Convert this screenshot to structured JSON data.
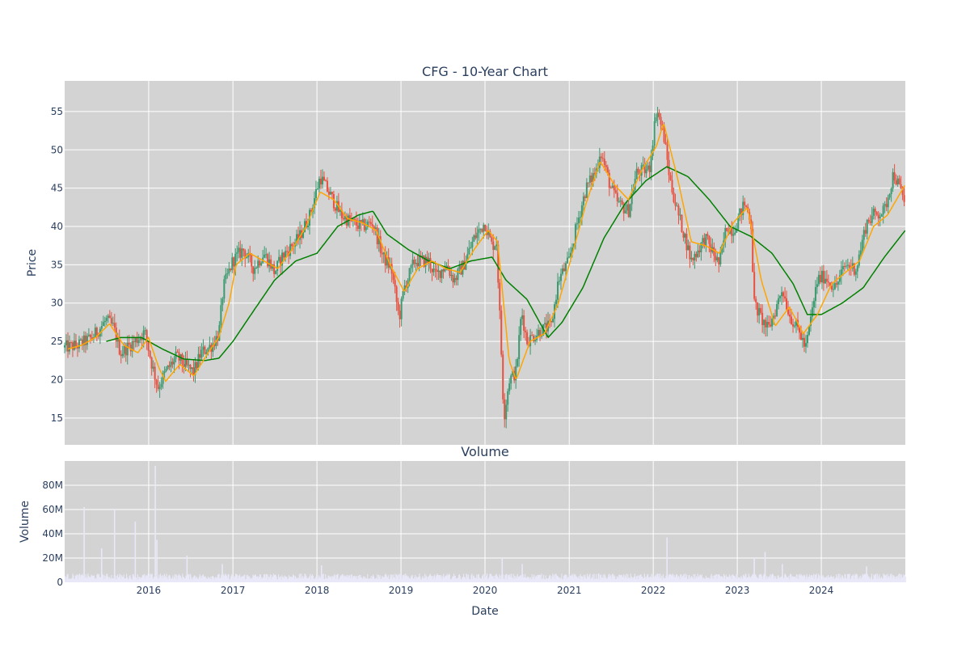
{
  "chart_data": [
    {
      "type": "candlestick",
      "title": "CFG - 10-Year Chart",
      "xlabel": "",
      "ylabel": "Price",
      "xlim": [
        "2015-01-01",
        "2024-12-31"
      ],
      "ylim": [
        11.5,
        59.0
      ],
      "y_ticks": [
        15,
        20,
        25,
        30,
        35,
        40,
        45,
        50,
        55
      ],
      "grid": true,
      "plot_bgcolor": "#d3d3d3",
      "increasing_color": "#3d9970",
      "decreasing_color": "#e8503f",
      "price_anchors": [
        [
          "2015-01-01",
          24.2
        ],
        [
          "2015-03-01",
          24.5
        ],
        [
          "2015-05-01",
          25.5
        ],
        [
          "2015-07-01",
          27.8
        ],
        [
          "2015-08-01",
          26.8
        ],
        [
          "2015-09-01",
          23.5
        ],
        [
          "2015-11-01",
          25.0
        ],
        [
          "2015-12-15",
          26.2
        ],
        [
          "2016-01-15",
          22.0
        ],
        [
          "2016-02-10",
          19.0
        ],
        [
          "2016-03-15",
          21.0
        ],
        [
          "2016-05-01",
          23.0
        ],
        [
          "2016-06-20",
          21.5
        ],
        [
          "2016-07-15",
          21.0
        ],
        [
          "2016-08-15",
          23.5
        ],
        [
          "2016-10-01",
          24.5
        ],
        [
          "2016-11-01",
          26.0
        ],
        [
          "2016-11-20",
          32.0
        ],
        [
          "2016-12-31",
          35.5
        ],
        [
          "2017-02-15",
          37.0
        ],
        [
          "2017-04-01",
          34.5
        ],
        [
          "2017-05-15",
          36.5
        ],
        [
          "2017-06-15",
          35.0
        ],
        [
          "2017-07-01",
          34.0
        ],
        [
          "2017-08-01",
          36.0
        ],
        [
          "2017-09-15",
          37.5
        ],
        [
          "2017-10-15",
          38.5
        ],
        [
          "2017-12-01",
          41.5
        ],
        [
          "2018-01-15",
          46.5
        ],
        [
          "2018-03-01",
          44.0
        ],
        [
          "2018-04-15",
          41.5
        ],
        [
          "2018-06-01",
          40.5
        ],
        [
          "2018-07-15",
          40.0
        ],
        [
          "2018-09-01",
          40.5
        ],
        [
          "2018-10-15",
          36.0
        ],
        [
          "2018-11-20",
          34.5
        ],
        [
          "2018-12-24",
          28.0
        ],
        [
          "2019-01-15",
          32.0
        ],
        [
          "2019-03-01",
          35.5
        ],
        [
          "2019-05-01",
          35.5
        ],
        [
          "2019-06-01",
          33.5
        ],
        [
          "2019-07-15",
          35.0
        ],
        [
          "2019-08-20",
          33.0
        ],
        [
          "2019-10-01",
          35.0
        ],
        [
          "2019-11-15",
          38.5
        ],
        [
          "2019-12-31",
          40.5
        ],
        [
          "2020-01-31",
          37.5
        ],
        [
          "2020-02-20",
          38.0
        ],
        [
          "2020-03-10",
          25.0
        ],
        [
          "2020-03-23",
          15.0
        ],
        [
          "2020-04-15",
          20.0
        ],
        [
          "2020-05-15",
          21.0
        ],
        [
          "2020-06-08",
          29.0
        ],
        [
          "2020-07-01",
          25.0
        ],
        [
          "2020-09-01",
          26.5
        ],
        [
          "2020-10-15",
          27.0
        ],
        [
          "2020-11-15",
          33.0
        ],
        [
          "2020-12-31",
          35.5
        ],
        [
          "2021-02-01",
          40.0
        ],
        [
          "2021-03-15",
          45.0
        ],
        [
          "2021-05-01",
          47.5
        ],
        [
          "2021-05-15",
          50.0
        ],
        [
          "2021-07-01",
          45.0
        ],
        [
          "2021-08-01",
          43.0
        ],
        [
          "2021-09-15",
          42.0
        ],
        [
          "2021-10-20",
          47.0
        ],
        [
          "2021-12-15",
          47.5
        ],
        [
          "2022-01-15",
          55.5
        ],
        [
          "2022-02-15",
          52.0
        ],
        [
          "2022-03-15",
          46.0
        ],
        [
          "2022-04-15",
          42.0
        ],
        [
          "2022-05-15",
          39.0
        ],
        [
          "2022-06-15",
          35.5
        ],
        [
          "2022-08-15",
          38.5
        ],
        [
          "2022-10-15",
          35.0
        ],
        [
          "2022-11-15",
          40.0
        ],
        [
          "2022-12-15",
          39.5
        ],
        [
          "2023-02-01",
          43.0
        ],
        [
          "2023-03-01",
          41.0
        ],
        [
          "2023-03-15",
          30.0
        ],
        [
          "2023-04-15",
          28.0
        ],
        [
          "2023-05-15",
          26.5
        ],
        [
          "2023-06-15",
          29.0
        ],
        [
          "2023-07-15",
          32.0
        ],
        [
          "2023-08-15",
          28.5
        ],
        [
          "2023-10-01",
          26.0
        ],
        [
          "2023-10-25",
          24.0
        ],
        [
          "2023-12-15",
          33.0
        ],
        [
          "2024-01-15",
          33.5
        ],
        [
          "2024-03-01",
          32.0
        ],
        [
          "2024-04-15",
          35.0
        ],
        [
          "2024-06-01",
          34.5
        ],
        [
          "2024-07-15",
          40.5
        ],
        [
          "2024-08-15",
          41.5
        ],
        [
          "2024-10-01",
          42.0
        ],
        [
          "2024-11-10",
          47.0
        ],
        [
          "2024-12-31",
          43.0
        ]
      ],
      "sma_short_anchors": [
        [
          "2015-01-15",
          24.0
        ],
        [
          "2015-03-15",
          24.5
        ],
        [
          "2015-05-15",
          25.5
        ],
        [
          "2015-07-15",
          27.3
        ],
        [
          "2015-09-15",
          24.5
        ],
        [
          "2015-11-15",
          23.5
        ],
        [
          "2015-12-31",
          25.5
        ],
        [
          "2016-02-15",
          21.5
        ],
        [
          "2016-03-15",
          19.8
        ],
        [
          "2016-05-15",
          22.0
        ],
        [
          "2016-07-15",
          20.5
        ],
        [
          "2016-09-15",
          23.5
        ],
        [
          "2016-10-31",
          25.5
        ],
        [
          "2016-12-15",
          30.0
        ],
        [
          "2017-01-15",
          35.0
        ],
        [
          "2017-03-15",
          36.5
        ],
        [
          "2017-05-15",
          35.5
        ],
        [
          "2017-07-15",
          34.5
        ],
        [
          "2017-09-15",
          37.0
        ],
        [
          "2017-11-15",
          40.0
        ],
        [
          "2018-01-15",
          44.5
        ],
        [
          "2018-03-15",
          43.5
        ],
        [
          "2018-05-15",
          41.0
        ],
        [
          "2018-07-15",
          40.5
        ],
        [
          "2018-09-15",
          39.5
        ],
        [
          "2018-11-15",
          35.0
        ],
        [
          "2019-01-15",
          31.5
        ],
        [
          "2019-03-15",
          34.5
        ],
        [
          "2019-05-15",
          35.5
        ],
        [
          "2019-07-15",
          34.5
        ],
        [
          "2019-09-15",
          34.0
        ],
        [
          "2019-11-15",
          37.0
        ],
        [
          "2020-01-15",
          39.5
        ],
        [
          "2020-02-25",
          38.0
        ],
        [
          "2020-04-15",
          22.5
        ],
        [
          "2020-05-15",
          20.0
        ],
        [
          "2020-07-15",
          25.0
        ],
        [
          "2020-09-15",
          26.0
        ],
        [
          "2020-11-15",
          30.0
        ],
        [
          "2021-01-15",
          36.5
        ],
        [
          "2021-03-15",
          43.0
        ],
        [
          "2021-05-15",
          48.5
        ],
        [
          "2021-07-15",
          45.5
        ],
        [
          "2021-09-15",
          43.5
        ],
        [
          "2021-11-15",
          47.5
        ],
        [
          "2022-01-15",
          50.5
        ],
        [
          "2022-02-15",
          53.5
        ],
        [
          "2022-04-15",
          46.5
        ],
        [
          "2022-06-15",
          38.0
        ],
        [
          "2022-08-15",
          37.5
        ],
        [
          "2022-10-15",
          36.5
        ],
        [
          "2022-12-15",
          40.5
        ],
        [
          "2023-02-15",
          42.5
        ],
        [
          "2023-04-15",
          33.0
        ],
        [
          "2023-06-15",
          27.0
        ],
        [
          "2023-08-15",
          29.5
        ],
        [
          "2023-10-15",
          26.0
        ],
        [
          "2023-12-15",
          28.5
        ],
        [
          "2024-02-15",
          32.5
        ],
        [
          "2024-04-15",
          34.0
        ],
        [
          "2024-06-15",
          35.5
        ],
        [
          "2024-08-15",
          40.0
        ],
        [
          "2024-10-15",
          41.5
        ],
        [
          "2024-12-31",
          45.5
        ]
      ],
      "sma_long_anchors": [
        [
          "2015-07-01",
          25.0
        ],
        [
          "2015-09-01",
          25.5
        ],
        [
          "2015-12-01",
          25.5
        ],
        [
          "2016-03-01",
          24.0
        ],
        [
          "2016-06-01",
          22.7
        ],
        [
          "2016-09-01",
          22.5
        ],
        [
          "2016-11-01",
          22.8
        ],
        [
          "2017-01-01",
          25.0
        ],
        [
          "2017-04-01",
          29.0
        ],
        [
          "2017-07-01",
          33.0
        ],
        [
          "2017-10-01",
          35.5
        ],
        [
          "2018-01-01",
          36.5
        ],
        [
          "2018-04-01",
          40.0
        ],
        [
          "2018-07-01",
          41.5
        ],
        [
          "2018-09-01",
          42.0
        ],
        [
          "2018-11-01",
          39.0
        ],
        [
          "2019-02-01",
          37.0
        ],
        [
          "2019-05-01",
          35.5
        ],
        [
          "2019-08-01",
          34.5
        ],
        [
          "2019-11-01",
          35.5
        ],
        [
          "2020-02-01",
          36.0
        ],
        [
          "2020-04-01",
          33.0
        ],
        [
          "2020-07-01",
          30.5
        ],
        [
          "2020-10-01",
          25.5
        ],
        [
          "2020-12-01",
          27.5
        ],
        [
          "2021-03-01",
          32.0
        ],
        [
          "2021-06-01",
          38.5
        ],
        [
          "2021-09-01",
          43.0
        ],
        [
          "2021-12-01",
          46.0
        ],
        [
          "2022-03-01",
          47.8
        ],
        [
          "2022-06-01",
          46.5
        ],
        [
          "2022-09-01",
          43.5
        ],
        [
          "2022-12-01",
          40.0
        ],
        [
          "2023-03-01",
          38.7
        ],
        [
          "2023-06-01",
          36.5
        ],
        [
          "2023-09-01",
          32.5
        ],
        [
          "2023-11-01",
          28.5
        ],
        [
          "2024-01-01",
          28.5
        ],
        [
          "2024-04-01",
          30.0
        ],
        [
          "2024-07-01",
          32.0
        ],
        [
          "2024-10-01",
          36.0
        ],
        [
          "2024-12-31",
          39.5
        ]
      ]
    },
    {
      "type": "bar",
      "title": "Volume",
      "xlabel": "Date",
      "ylabel": "Volume",
      "xlim": [
        "2015-01-01",
        "2024-12-31"
      ],
      "ylim": [
        0,
        100000000
      ],
      "y_ticks": [
        0,
        20000000,
        40000000,
        60000000,
        80000000
      ],
      "y_tick_labels": [
        "0",
        "20M",
        "40M",
        "60M",
        "80M"
      ],
      "x_ticks": [
        "2016-01-01",
        "2017-01-01",
        "2018-01-01",
        "2019-01-01",
        "2020-01-01",
        "2021-01-01",
        "2022-01-01",
        "2023-01-01",
        "2024-01-01"
      ],
      "x_tick_labels": [
        "2016",
        "2017",
        "2018",
        "2019",
        "2020",
        "2021",
        "2022",
        "2023",
        "2024"
      ],
      "grid": true,
      "plot_bgcolor": "#d3d3d3",
      "bar_color": "#e8e8f8",
      "baseline_volume": 4500000,
      "volume_spikes": [
        [
          "2015-03-26",
          62000000
        ],
        [
          "2015-06-10",
          28000000
        ],
        [
          "2015-08-05",
          60000000
        ],
        [
          "2015-11-03",
          50000000
        ],
        [
          "2016-01-29",
          96000000
        ],
        [
          "2016-02-05",
          35000000
        ],
        [
          "2016-06-15",
          22000000
        ],
        [
          "2016-11-15",
          15000000
        ],
        [
          "2018-01-20",
          14000000
        ],
        [
          "2020-03-15",
          20000000
        ],
        [
          "2020-06-10",
          15000000
        ],
        [
          "2022-03-01",
          37000000
        ],
        [
          "2023-03-15",
          20000000
        ],
        [
          "2023-05-01",
          25000000
        ],
        [
          "2023-07-15",
          15000000
        ],
        [
          "2024-07-15",
          13000000
        ]
      ]
    }
  ]
}
